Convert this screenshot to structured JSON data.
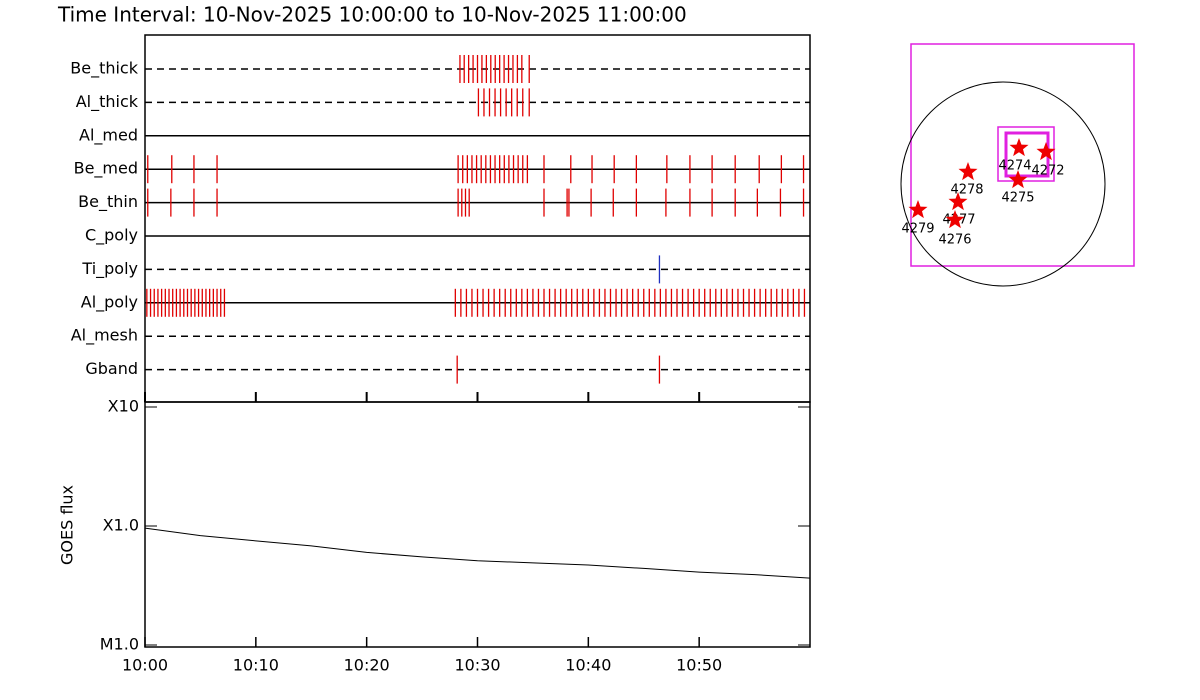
{
  "chart_data": [
    {
      "type": "timeline",
      "title": "Time Interval: 10-Nov-2025 10:00:00 to 10-Nov-2025 11:00:00",
      "xlim": [
        "10:00",
        "11:00"
      ],
      "xticks": [
        "10:00",
        "10:10",
        "10:20",
        "10:30",
        "10:40",
        "10:50"
      ],
      "filters": [
        {
          "name": "Be_thick",
          "line": "dashed",
          "color": "#e00000",
          "times": [
            "10:28:25",
            "10:28:48",
            "10:29:12",
            "10:29:36",
            "10:30:00",
            "10:30:24",
            "10:30:48",
            "10:31:12",
            "10:31:36",
            "10:32:00",
            "10:32:24",
            "10:32:48",
            "10:33:12",
            "10:33:36",
            "10:34:00",
            "10:34:40"
          ]
        },
        {
          "name": "Al_thick",
          "line": "dashed",
          "color": "#e00000",
          "times": [
            "10:30:05",
            "10:30:35",
            "10:31:05",
            "10:31:35",
            "10:32:05",
            "10:32:35",
            "10:33:05",
            "10:33:35",
            "10:34:05",
            "10:34:40"
          ]
        },
        {
          "name": "Al_med",
          "line": "solid",
          "color": "#e00000",
          "times": []
        },
        {
          "name": "Be_med",
          "line": "solid",
          "color": "#e00000",
          "times": [
            "10:00:15",
            "10:02:25",
            "10:04:25",
            "10:06:30",
            "10:28:15",
            "10:28:40",
            "10:29:05",
            "10:29:30",
            "10:29:55",
            "10:30:20",
            "10:30:45",
            "10:31:10",
            "10:31:35",
            "10:32:00",
            "10:32:25",
            "10:32:50",
            "10:33:15",
            "10:33:40",
            "10:34:05",
            "10:34:30",
            "10:36:00",
            "10:38:25",
            "10:40:20",
            "10:42:20",
            "10:44:20",
            "10:47:05",
            "10:49:10",
            "10:51:10",
            "10:53:15",
            "10:55:25",
            "10:57:25",
            "10:59:25"
          ]
        },
        {
          "name": "Be_thin",
          "line": "solid",
          "color": "#e00000",
          "times": [
            "10:00:15",
            "10:02:20",
            "10:04:25",
            "10:06:30",
            "10:28:15",
            "10:28:35",
            "10:28:55",
            "10:29:15",
            "10:36:00",
            "10:38:05",
            "10:38:15",
            "10:40:15",
            "10:42:15",
            "10:44:20",
            "10:47:00",
            "10:49:10",
            "10:51:10",
            "10:53:15",
            "10:55:15",
            "10:57:20",
            "10:59:25"
          ]
        },
        {
          "name": "C_poly",
          "line": "solid",
          "color": "#e00000",
          "times": []
        },
        {
          "name": "Ti_poly",
          "line": "dashed",
          "color": "#2030c0",
          "times": [
            "10:46:25"
          ]
        },
        {
          "name": "Al_poly",
          "line": "solid",
          "color": "#e00000",
          "times": [
            "10:00:10",
            "10:00:30",
            "10:00:50",
            "10:01:10",
            "10:01:30",
            "10:01:50",
            "10:02:10",
            "10:02:30",
            "10:02:50",
            "10:03:10",
            "10:03:30",
            "10:03:50",
            "10:04:10",
            "10:04:30",
            "10:04:50",
            "10:05:10",
            "10:05:30",
            "10:05:50",
            "10:06:10",
            "10:06:30",
            "10:06:50",
            "10:07:10",
            "10:28:00",
            "10:28:30",
            "10:29:00",
            "10:29:30",
            "10:30:00",
            "10:30:30",
            "10:31:00",
            "10:31:30",
            "10:32:00",
            "10:32:30",
            "10:33:00",
            "10:33:30",
            "10:34:00",
            "10:34:30",
            "10:35:00",
            "10:35:30",
            "10:36:00",
            "10:36:30",
            "10:37:00",
            "10:37:30",
            "10:38:00",
            "10:38:30",
            "10:39:00",
            "10:39:30",
            "10:40:00",
            "10:40:30",
            "10:41:00",
            "10:41:30",
            "10:42:00",
            "10:42:30",
            "10:43:00",
            "10:43:30",
            "10:44:00",
            "10:44:30",
            "10:45:00",
            "10:45:30",
            "10:46:00",
            "10:46:30",
            "10:47:00",
            "10:47:30",
            "10:48:00",
            "10:48:30",
            "10:49:00",
            "10:49:30",
            "10:50:00",
            "10:50:30",
            "10:51:00",
            "10:51:30",
            "10:52:00",
            "10:52:30",
            "10:53:00",
            "10:53:30",
            "10:54:00",
            "10:54:30",
            "10:55:00",
            "10:55:30",
            "10:56:00",
            "10:56:30",
            "10:57:00",
            "10:57:30",
            "10:58:00",
            "10:58:30",
            "10:59:00",
            "10:59:30"
          ]
        },
        {
          "name": "Al_mesh",
          "line": "dashed",
          "color": "#e00000",
          "times": []
        },
        {
          "name": "Gband",
          "line": "dashed",
          "color": "#e00000",
          "times": [
            "10:28:10",
            "10:46:25"
          ]
        }
      ]
    },
    {
      "type": "line",
      "y_label": "GOES flux",
      "log": true,
      "color": "#000000",
      "xlim": [
        "10:00",
        "11:00"
      ],
      "ylim": [
        1e-05,
        0.001
      ],
      "yticks": [
        {
          "value": 1e-05,
          "label": "M1.0"
        },
        {
          "value": 0.0001,
          "label": "X1.0"
        },
        {
          "value": 0.001,
          "label": "X10"
        }
      ],
      "x": [
        "10:00",
        "10:05",
        "10:10",
        "10:15",
        "10:20",
        "10:25",
        "10:30",
        "10:35",
        "10:40",
        "10:45",
        "10:50",
        "10:55",
        "11:00"
      ],
      "values": [
        9.6e-05,
        8.3e-05,
        7.5e-05,
        6.8e-05,
        6e-05,
        5.5e-05,
        5.1e-05,
        4.9e-05,
        4.7e-05,
        4.4e-05,
        4.1e-05,
        3.9e-05,
        3.65e-05
      ]
    }
  ],
  "map": {
    "regions": [
      "4274",
      "4272",
      "4278",
      "4275",
      "4277",
      "4276",
      "4279"
    ]
  }
}
